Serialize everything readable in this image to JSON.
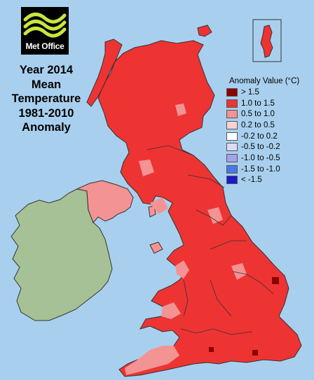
{
  "logo": {
    "text": "Met Office"
  },
  "title": {
    "lines": [
      "Year 2014",
      "Mean",
      "Temperature",
      "1981-2010",
      "Anomaly"
    ]
  },
  "legend": {
    "title": "Anomaly Value (°C)",
    "items": [
      {
        "label": "> 1.5",
        "color": "#8b0000"
      },
      {
        "label": "1.0 to 1.5",
        "color": "#ee3333"
      },
      {
        "label": "0.5 to 1.0",
        "color": "#f49393"
      },
      {
        "label": "0.2 to 0.5",
        "color": "#fcd2d2"
      },
      {
        "label": "-0.2 to 0.2",
        "color": "#ffffff"
      },
      {
        "label": "-0.5 to -0.2",
        "color": "#dcdcf8"
      },
      {
        "label": "-1.0 to -0.5",
        "color": "#a4a4ec"
      },
      {
        "label": "-1.5 to -1.0",
        "color": "#4a78e6"
      },
      {
        "label": "< -1.5",
        "color": "#1a1acc"
      }
    ]
  },
  "colors": {
    "sea": "#a8d0ee",
    "ireland": "#a6c195",
    "border": "#333333"
  }
}
